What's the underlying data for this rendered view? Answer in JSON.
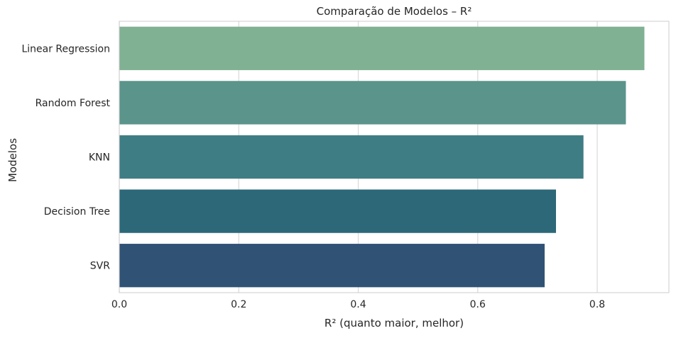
{
  "chart_data": {
    "type": "bar",
    "orientation": "horizontal",
    "title": "Comparação de Modelos – R²",
    "xlabel": "R² (quanto maior, melhor)",
    "ylabel": "Modelos",
    "xlim": [
      0,
      0.92
    ],
    "x_ticks": [
      "0.0",
      "0.2",
      "0.4",
      "0.6",
      "0.8"
    ],
    "x_tick_values": [
      0.0,
      0.2,
      0.4,
      0.6,
      0.8
    ],
    "categories": [
      "Linear Regression",
      "Random Forest",
      "KNN",
      "Decision Tree",
      "SVR"
    ],
    "values": [
      0.879,
      0.848,
      0.777,
      0.731,
      0.712
    ],
    "colors": [
      "#80b193",
      "#5a948b",
      "#3f7d84",
      "#2c6878",
      "#305275"
    ],
    "grid": "x",
    "legend": "none"
  }
}
